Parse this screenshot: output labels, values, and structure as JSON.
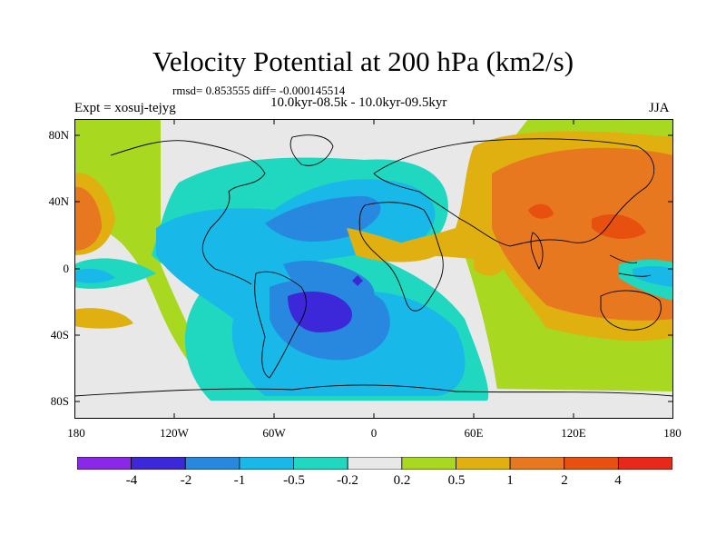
{
  "title": "Velocity Potential at 200 hPa (km2/s)",
  "stats_line": "rmsd= 0.853555  diff= -0.000145514",
  "experiment_label": "Expt = xosuj-tejyg",
  "period_label": "10.0kyr-08.5k - 10.0kyr-09.5kyr",
  "season_label": "JJA",
  "map": {
    "latitude_labels": [
      "80N",
      "40N",
      "0",
      "40S",
      "80S"
    ],
    "longitude_labels": [
      "180",
      "120W",
      "60W",
      "0",
      "60E",
      "120E",
      "180"
    ],
    "colors": {
      "neg_4": "#8a28e8",
      "neg_2": "#3c28d8",
      "neg_1": "#2888e0",
      "neg_05": "#18b8e8",
      "neg_02": "#20d8c0",
      "neutral": "#e8e8e8",
      "pos_02": "#a8d820",
      "pos_05": "#e0b010",
      "pos_1": "#e87820",
      "pos_2": "#e85010",
      "pos_4": "#e82818"
    }
  },
  "colorbar": {
    "labels": [
      "-4",
      "-2",
      "-1",
      "-0.5",
      "-0.2",
      "0.2",
      "0.5",
      "1",
      "2",
      "4"
    ],
    "colors": [
      "#8a28e8",
      "#3c28d8",
      "#2888e0",
      "#18b8e8",
      "#20d8c0",
      "#e8e8e8",
      "#a8d820",
      "#e0b010",
      "#e87820",
      "#e85010",
      "#e82818"
    ]
  }
}
